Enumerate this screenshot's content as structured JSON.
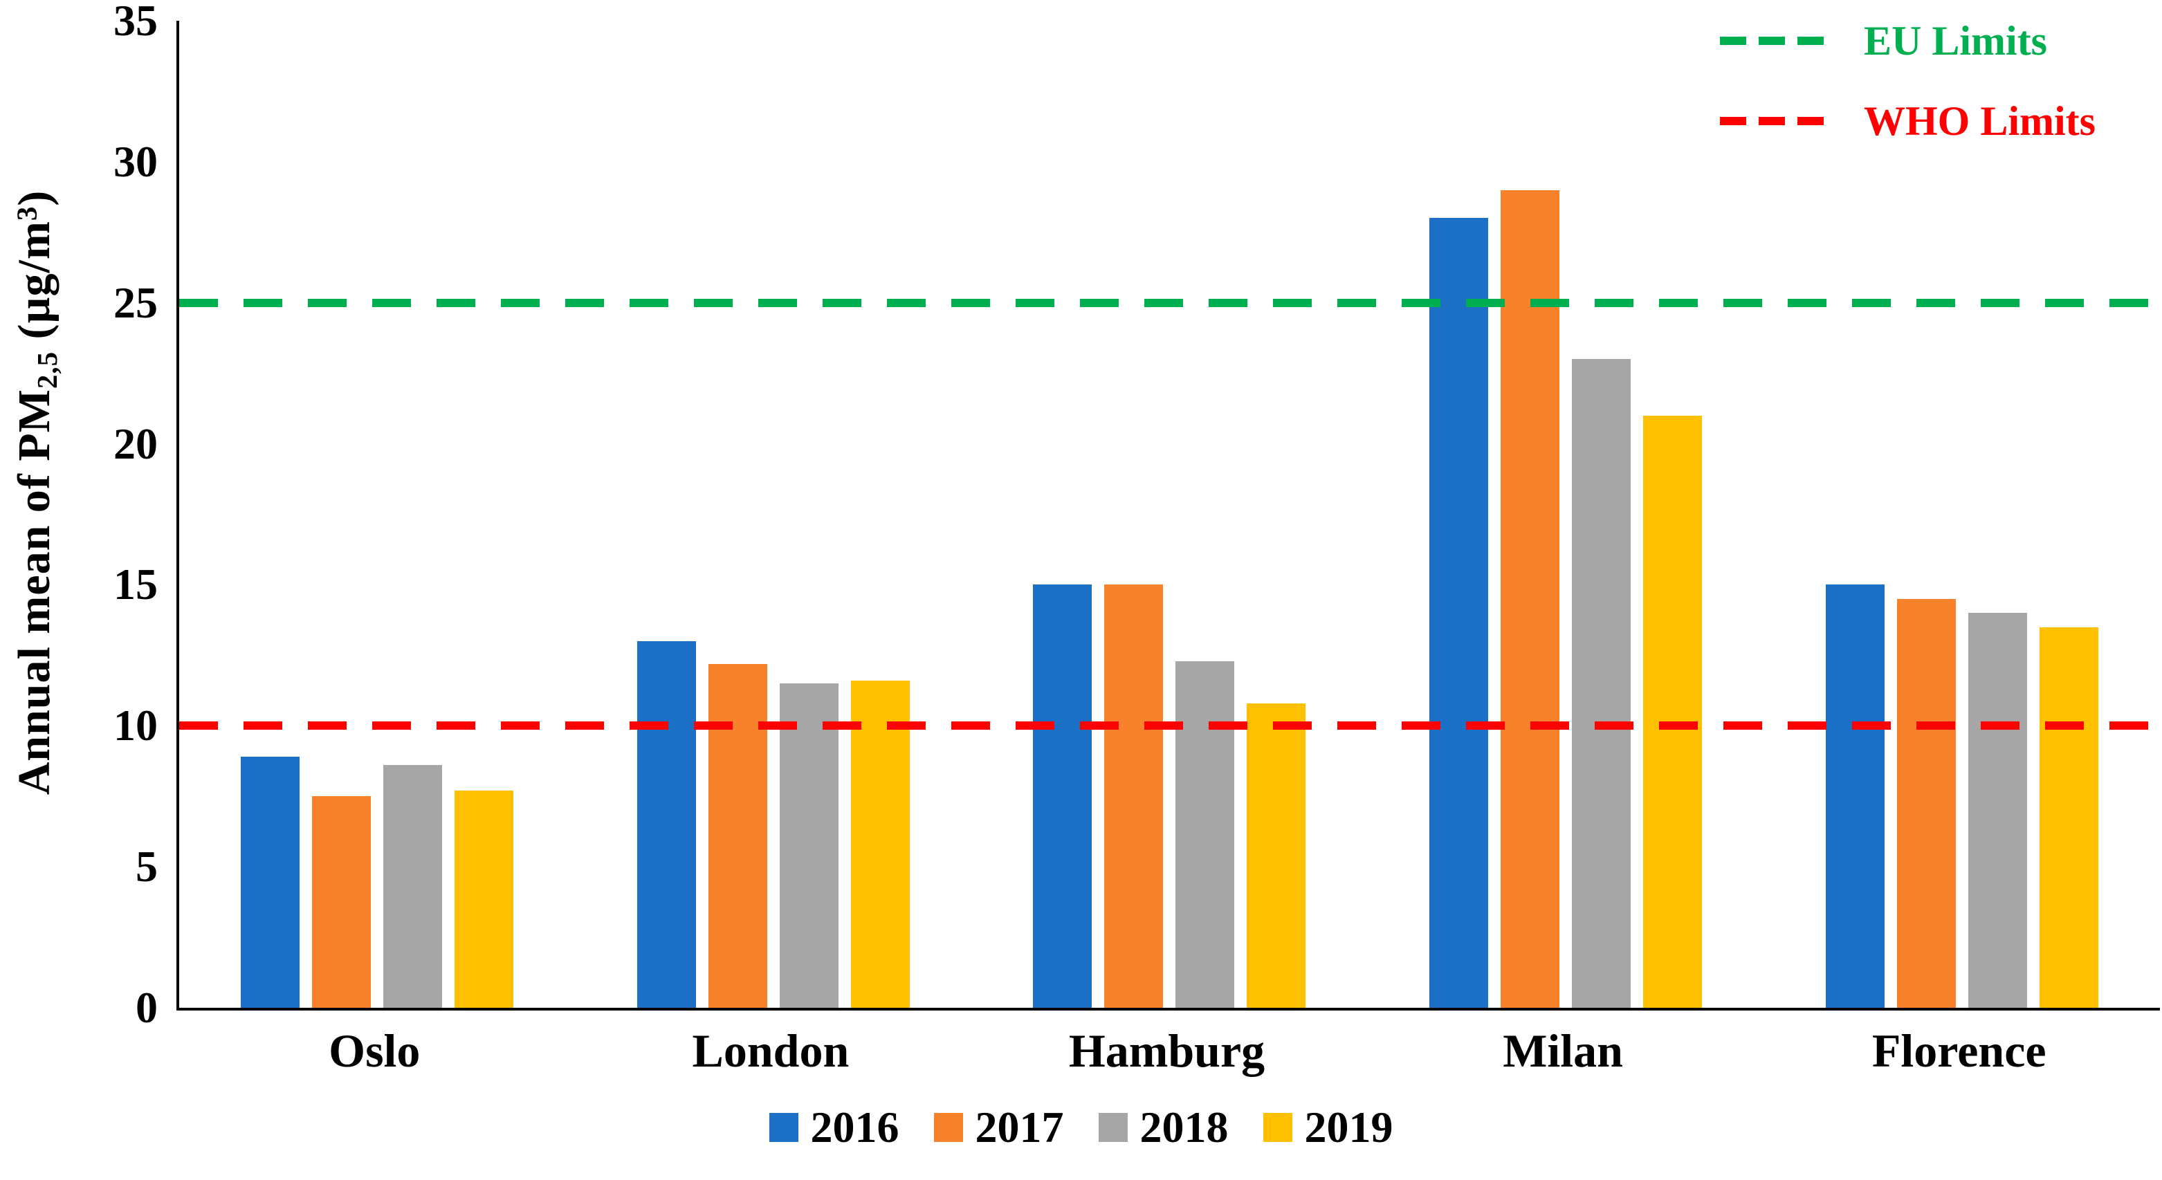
{
  "figure": {
    "background": "#FFFFFF",
    "axis_color": "#000000"
  },
  "chart_data": {
    "type": "bar",
    "title": "",
    "ylabel_parts": {
      "prefix": "Annual mean of PM",
      "subscript": "2,5",
      "mid": " (µg/m",
      "superscript": "3",
      "suffix": ")"
    },
    "categories": [
      "Oslo",
      "London",
      "Hamburg",
      "Milan",
      "Florence"
    ],
    "series": [
      {
        "name": "2016",
        "color": "#1B6FC4",
        "values": [
          8.9,
          13,
          15,
          28,
          15
        ]
      },
      {
        "name": "2017",
        "color": "#F8822C",
        "values": [
          7.5,
          12.2,
          15,
          29,
          14.5
        ]
      },
      {
        "name": "2018",
        "color": "#A6A6A6",
        "values": [
          8.6,
          11.5,
          12.3,
          23,
          14
        ]
      },
      {
        "name": "2019",
        "color": "#FFC000",
        "values": [
          7.7,
          11.6,
          10.8,
          21,
          13.5
        ]
      }
    ],
    "yticks": [
      0,
      5,
      10,
      15,
      20,
      25,
      30,
      35
    ],
    "ylim": [
      0,
      35
    ],
    "grid": false,
    "legend_position": "bottom",
    "reference_lines": [
      {
        "label": "EU Limits",
        "value": 25,
        "color": "#00B050"
      },
      {
        "label": "WHO Limits",
        "value": 10,
        "color": "#FE0000"
      }
    ]
  }
}
